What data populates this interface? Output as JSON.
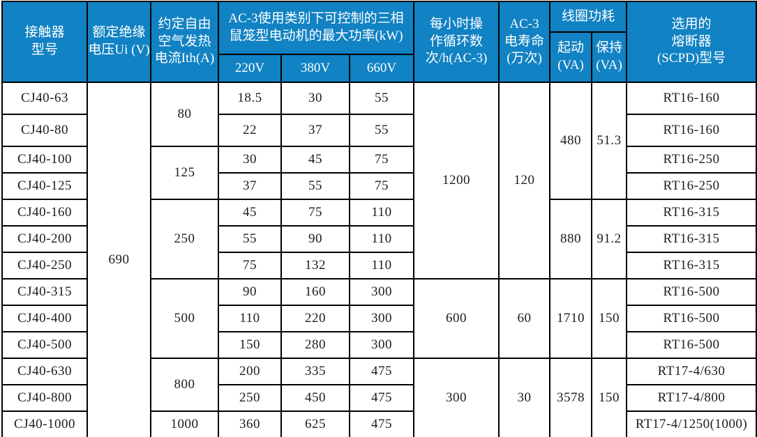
{
  "colors": {
    "header_bg": "#1182c3",
    "header_text": "#ffffff",
    "border": "#000000",
    "body_bg": "#ffffff",
    "body_text": "#1c1c1c"
  },
  "table": {
    "header": {
      "contactor_model": "接触器\n型号",
      "rated_insulation_voltage": "额定绝缘\n电压Ui (V)",
      "conventional_thermal_current": "约定自由\n空气发热\n电流Ith(A)",
      "ac3_power_group": "AC-3使用类别下可控制的三相\n鼠笼型电动机的最大功率(kW)",
      "v220": "220V",
      "v380": "380V",
      "v660": "660V",
      "cycles_per_hour": "每小时操\n作循环数\n次/h(AC-3)",
      "electrical_life": "AC-3\n电寿命\n(万次)",
      "coil_power_group": "线圈功耗",
      "pickup": "起动\n(VA)",
      "holding": "保持\n(VA)",
      "fuse": "选用的\n熔断器\n(SCPD)型号"
    },
    "spans": {
      "voltage": "690",
      "ith_groups": [
        "80",
        "125",
        "250",
        "500",
        "800",
        "1000"
      ],
      "cycles_groups": [
        "1200",
        "600",
        "300"
      ],
      "life_groups": [
        "120",
        "60",
        "30"
      ],
      "pickup_groups": [
        "480",
        "880",
        "1710",
        "3578"
      ],
      "holding_groups": [
        "51.3",
        "91.2",
        "150",
        "150"
      ]
    },
    "rows": [
      {
        "model": "CJ40-63",
        "p220": "18.5",
        "p380": "30",
        "p660": "55",
        "fuse": "RT16-160"
      },
      {
        "model": "CJ40-80",
        "p220": "22",
        "p380": "37",
        "p660": "55",
        "fuse": "RT16-160"
      },
      {
        "model": "CJ40-100",
        "p220": "30",
        "p380": "45",
        "p660": "75",
        "fuse": "RT16-250"
      },
      {
        "model": "CJ40-125",
        "p220": "37",
        "p380": "55",
        "p660": "75",
        "fuse": "RT16-250"
      },
      {
        "model": "CJ40-160",
        "p220": "45",
        "p380": "75",
        "p660": "110",
        "fuse": "RT16-315"
      },
      {
        "model": "CJ40-200",
        "p220": "55",
        "p380": "90",
        "p660": "110",
        "fuse": "RT16-315"
      },
      {
        "model": "CJ40-250",
        "p220": "75",
        "p380": "132",
        "p660": "110",
        "fuse": "RT16-315"
      },
      {
        "model": "CJ40-315",
        "p220": "90",
        "p380": "160",
        "p660": "300",
        "fuse": "RT16-500"
      },
      {
        "model": "CJ40-400",
        "p220": "110",
        "p380": "220",
        "p660": "300",
        "fuse": "RT16-500"
      },
      {
        "model": "CJ40-500",
        "p220": "150",
        "p380": "280",
        "p660": "300",
        "fuse": "RT16-500"
      },
      {
        "model": "CJ40-630",
        "p220": "200",
        "p380": "335",
        "p660": "475",
        "fuse": "RT17-4/630"
      },
      {
        "model": "CJ40-800",
        "p220": "250",
        "p380": "450",
        "p660": "475",
        "fuse": "RT17-4/800"
      },
      {
        "model": "CJ40-1000",
        "p220": "360",
        "p380": "625",
        "p660": "475",
        "fuse": "RT17-4/1250(1000)"
      }
    ]
  }
}
